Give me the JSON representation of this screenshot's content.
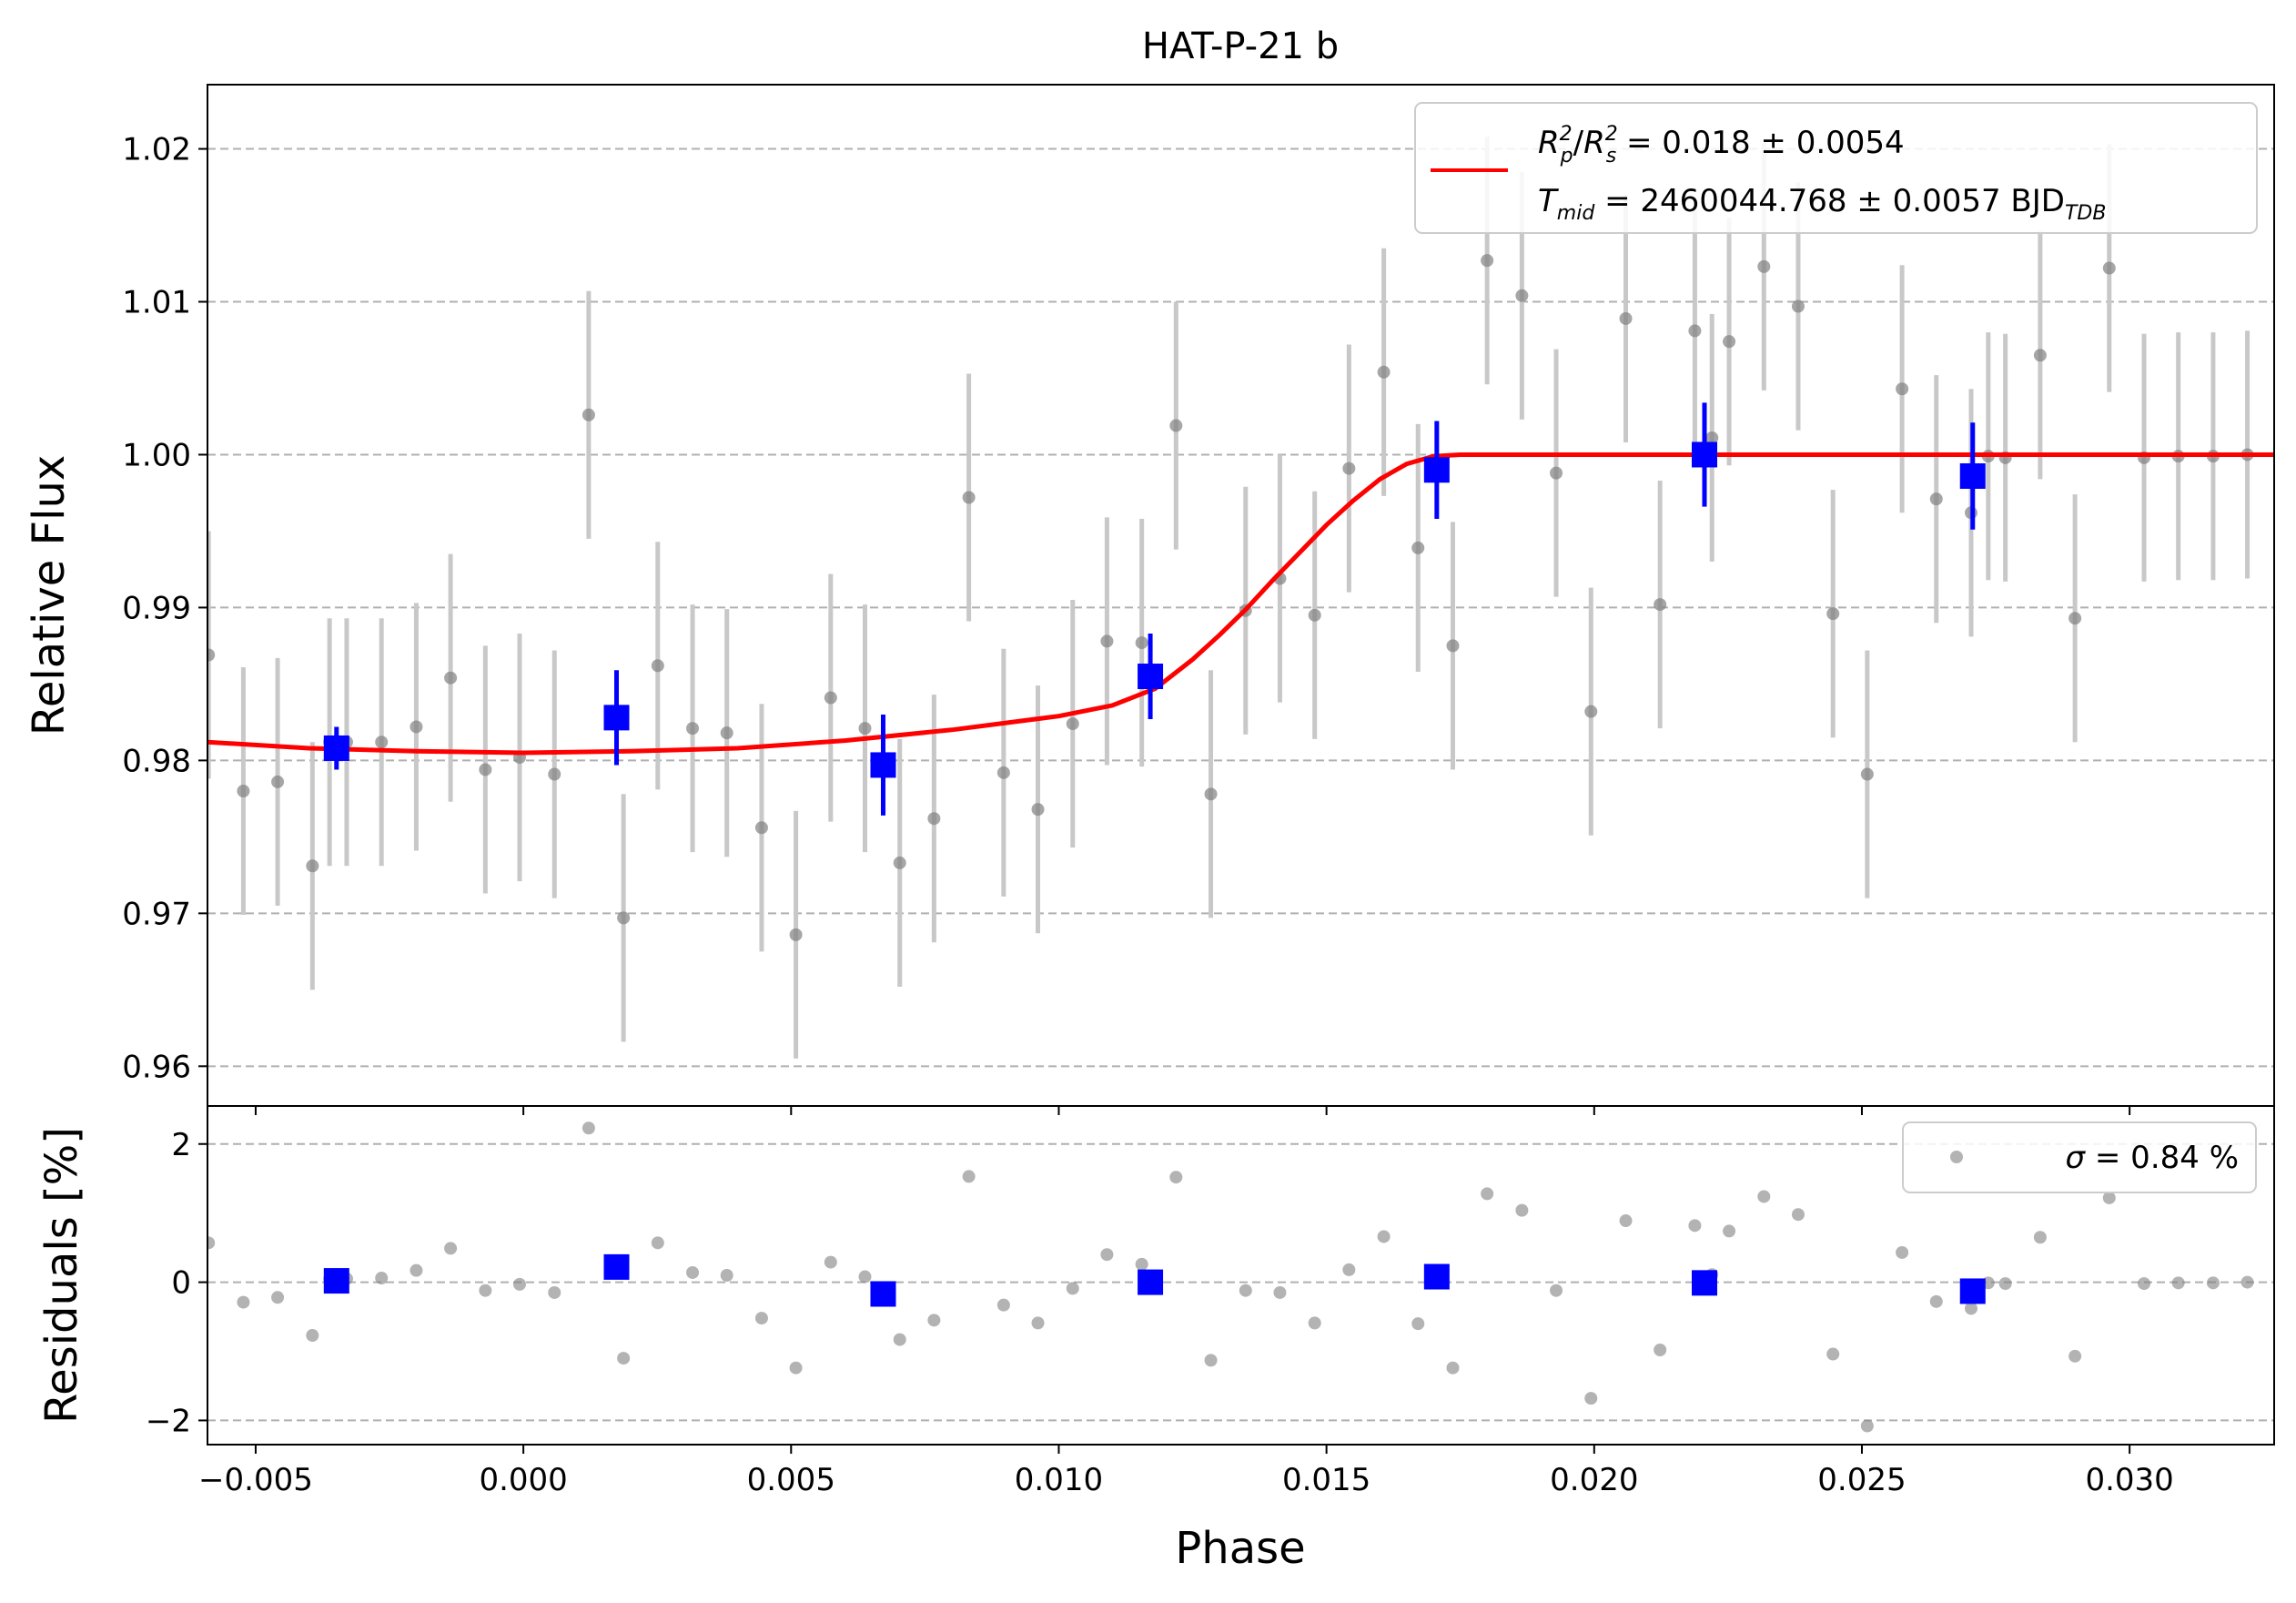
{
  "chart_data": [
    {
      "type": "scatter",
      "panel": "main",
      "title": "HAT-P-21 b",
      "xlabel": "",
      "ylabel": "Relative Flux",
      "xlim": [
        -0.0059,
        0.0327
      ],
      "ylim": [
        0.9574,
        1.0242
      ],
      "xticks": [
        -0.005,
        0.0,
        0.005,
        0.01,
        0.015,
        0.02,
        0.025,
        0.03
      ],
      "xtick_labels": [
        "",
        "",
        "",
        "",
        "",
        "",
        "",
        ""
      ],
      "yticks": [
        0.96,
        0.97,
        0.98,
        0.99,
        1.0,
        1.01,
        1.02
      ],
      "ytick_labels": [
        "0.96",
        "0.97",
        "0.98",
        "0.99",
        "1.00",
        "1.01",
        "1.02"
      ],
      "grid": "y-dashed",
      "legend_placement": "top-right",
      "colors": {
        "data": "#808080",
        "errorbar": "#c8c8c8",
        "binned": "#0000ff",
        "model": "#ff0000"
      },
      "legend": {
        "r_label": "R",
        "r_sub_p": "p",
        "r_sub_s": "s",
        "r_sup": "2",
        "r_value": " = 0.018 ± 0.0054",
        "t_label": "T",
        "t_sub": "mid",
        "t_value": " = 2460044.768 ± 0.0057 BJD",
        "t_unit_sub": "TDB"
      },
      "series": [
        {
          "kind": "points",
          "x": [
            -0.00588,
            -0.00523,
            -0.00459,
            -0.00394,
            -0.00362,
            -0.0033,
            -0.00265,
            -0.002,
            -0.00136,
            -0.00071,
            -7e-05,
            0.00058,
            0.00122,
            0.00187,
            0.00251,
            0.00316,
            0.0038,
            0.00445,
            0.00509,
            0.00574,
            0.00638,
            0.00703,
            0.00767,
            0.00832,
            0.00897,
            0.00961,
            0.01026,
            0.0109,
            0.01155,
            0.01219,
            0.01284,
            0.01349,
            0.01413,
            0.01478,
            0.01542,
            0.01607,
            0.01671,
            0.01736,
            0.018,
            0.01865,
            0.01929,
            0.01994,
            0.02059,
            0.02123,
            0.02188,
            0.0222,
            0.02252,
            0.02317,
            0.02381,
            0.02446,
            0.0251,
            0.02575,
            0.02639,
            0.02704,
            0.02736,
            0.02768,
            0.02833,
            0.02898,
            0.02962,
            0.03027,
            0.03091,
            0.03156,
            0.0322,
            0.03285
          ],
          "y": [
            0.9869,
            0.978,
            0.9786,
            0.9731,
            0.9812,
            0.9812,
            0.9812,
            0.9822,
            0.9854,
            0.9794,
            0.9802,
            0.9791,
            1.0026,
            0.9697,
            0.9862,
            0.9821,
            0.9818,
            0.9756,
            0.9686,
            0.9841,
            0.9821,
            0.9733,
            0.9762,
            0.9972,
            0.9792,
            0.9768,
            0.9824,
            0.9878,
            0.9877,
            1.0019,
            0.9778,
            0.9898,
            0.9919,
            0.9895,
            0.9991,
            1.0054,
            0.9939,
            0.9875,
            1.0127,
            1.0104,
            0.9988,
            0.9832,
            1.0089,
            0.9902,
            1.0081,
            1.0011,
            1.0074,
            1.0123,
            1.0097,
            0.9896,
            0.9791,
            1.0043,
            0.9971,
            0.9962,
            0.9999,
            0.9998,
            1.0065,
            0.9893,
            1.0122,
            0.9998,
            0.9999,
            0.9999,
            1.0,
            1.0
          ],
          "yerr": 0.0081
        },
        {
          "kind": "binned",
          "x": [
            -0.00349,
            0.00174,
            0.00672,
            0.01171,
            0.01706,
            0.02206,
            0.02707
          ],
          "y": [
            0.9808,
            0.9828,
            0.9797,
            0.9855,
            0.999,
            1.0,
            0.9986
          ],
          "yerr": [
            0.0014,
            0.0031,
            0.0033,
            0.0028,
            0.0032,
            0.0034,
            0.0035
          ]
        },
        {
          "kind": "model",
          "x": [
            -0.0059,
            -0.004,
            -0.002,
            0.0,
            0.002,
            0.004,
            0.006,
            0.008,
            0.01,
            0.011,
            0.0118,
            0.0125,
            0.013,
            0.0135,
            0.014,
            0.0145,
            0.015,
            0.0155,
            0.016,
            0.0165,
            0.017,
            0.0175,
            0.02,
            0.025,
            0.03,
            0.0327
          ],
          "y": [
            0.9812,
            0.9808,
            0.9806,
            0.9805,
            0.9806,
            0.9808,
            0.9813,
            0.982,
            0.9829,
            0.9836,
            0.9847,
            0.9866,
            0.9882,
            0.9899,
            0.9918,
            0.9936,
            0.9954,
            0.997,
            0.9984,
            0.9994,
            0.9999,
            1.0,
            1.0,
            1.0,
            1.0,
            1.0
          ]
        }
      ]
    },
    {
      "type": "scatter",
      "panel": "residuals",
      "xlabel": "Phase",
      "ylabel": "Residuals [%]",
      "xlim": [
        -0.0059,
        0.0327
      ],
      "ylim": [
        -2.35,
        2.55
      ],
      "xticks": [
        -0.005,
        0.0,
        0.005,
        0.01,
        0.015,
        0.02,
        0.025,
        0.03
      ],
      "xtick_labels": [
        "−0.005",
        "0.000",
        "0.005",
        "0.010",
        "0.015",
        "0.020",
        "0.025",
        "0.030"
      ],
      "yticks": [
        -2,
        0,
        2
      ],
      "ytick_labels": [
        "−2",
        "0",
        "2"
      ],
      "grid": "y-dashed",
      "legend_placement": "top-right",
      "legend": {
        "sigma_label": "σ",
        "sigma_value": " = 0.84 %"
      },
      "series": [
        {
          "kind": "points",
          "x": [
            -0.00588,
            -0.00523,
            -0.00459,
            -0.00394,
            -0.00362,
            -0.0033,
            -0.00265,
            -0.002,
            -0.00136,
            -0.00071,
            -7e-05,
            0.00058,
            0.00122,
            0.00187,
            0.00251,
            0.00316,
            0.0038,
            0.00445,
            0.00509,
            0.00574,
            0.00638,
            0.00703,
            0.00767,
            0.00832,
            0.00897,
            0.00961,
            0.01026,
            0.0109,
            0.01155,
            0.01219,
            0.01284,
            0.01349,
            0.01413,
            0.01478,
            0.01542,
            0.01607,
            0.01671,
            0.01736,
            0.018,
            0.01865,
            0.01929,
            0.01994,
            0.02059,
            0.02123,
            0.02188,
            0.0222,
            0.02252,
            0.02317,
            0.02381,
            0.02446,
            0.0251,
            0.02575,
            0.02639,
            0.02704,
            0.02736,
            0.02768,
            0.02833,
            0.02898,
            0.02962,
            0.03027,
            0.03091,
            0.03156,
            0.0322,
            0.03285
          ],
          "y": [
            0.57,
            -0.29,
            -0.22,
            -0.77,
            0.05,
            0.05,
            0.06,
            0.17,
            0.49,
            -0.12,
            -0.03,
            -0.15,
            2.23,
            -1.1,
            0.57,
            0.14,
            0.1,
            -0.52,
            -1.24,
            0.29,
            0.08,
            -0.83,
            -0.55,
            1.53,
            -0.33,
            -0.59,
            -0.09,
            0.4,
            0.26,
            1.52,
            -1.13,
            -0.12,
            -0.15,
            -0.59,
            0.18,
            0.66,
            -0.6,
            -1.24,
            1.28,
            1.04,
            -0.12,
            -1.68,
            0.89,
            -0.98,
            0.82,
            0.11,
            0.74,
            1.24,
            0.98,
            -1.04,
            -2.08,
            0.43,
            -0.28,
            -0.38,
            -0.01,
            -0.02,
            0.65,
            -1.07,
            1.22,
            -0.02,
            -0.01,
            -0.01,
            0.0,
            0.0
          ]
        },
        {
          "kind": "binned",
          "x": [
            -0.00349,
            0.00174,
            0.00672,
            0.01171,
            0.01706,
            0.02206,
            0.02707
          ],
          "y": [
            0.02,
            0.22,
            -0.17,
            0.0,
            0.08,
            -0.01,
            -0.13
          ]
        }
      ]
    }
  ]
}
